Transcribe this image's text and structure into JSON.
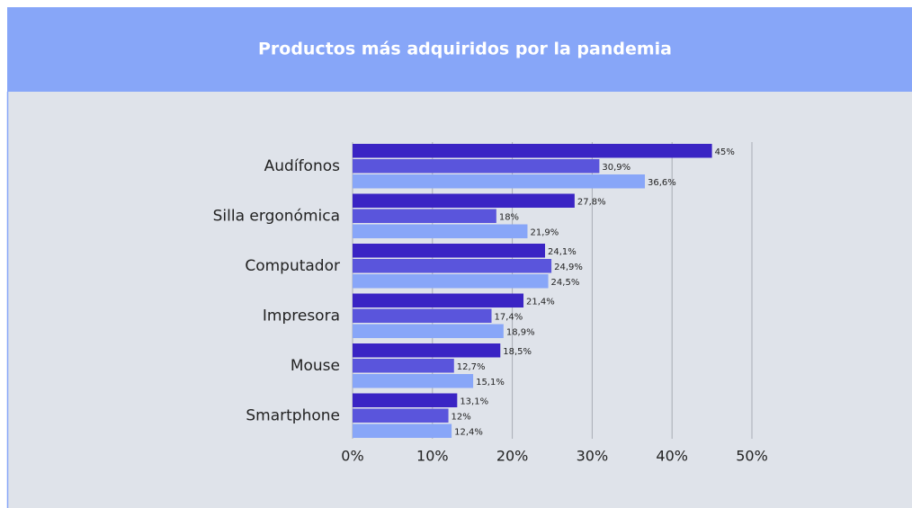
{
  "chart_data": {
    "type": "bar",
    "orientation": "horizontal",
    "title": "Productos más adquiridos por la pandemia",
    "categories": [
      "Audífonos",
      "Silla ergonómica",
      "Computador",
      "Impresora",
      "Mouse",
      "Smartphone"
    ],
    "series": [
      {
        "color": "#3a24c4",
        "values": [
          45,
          27.8,
          24.1,
          21.4,
          18.5,
          13.1
        ],
        "value_labels": [
          "45%",
          "27,8%",
          "24,1%",
          "21,4%",
          "18,5%",
          "13,1%"
        ]
      },
      {
        "color": "#5a55dc",
        "values": [
          30.9,
          18,
          24.9,
          17.4,
          12.7,
          12
        ],
        "value_labels": [
          "30,9%",
          "18%",
          "24,9%",
          "17,4%",
          "12,7%",
          "12%"
        ]
      },
      {
        "color": "#88a6f8",
        "values": [
          36.6,
          21.9,
          24.5,
          18.9,
          15.1,
          12.4
        ],
        "value_labels": [
          "36,6%",
          "21,9%",
          "24,5%",
          "18,9%",
          "15,1%",
          "12,4%"
        ]
      }
    ],
    "xlim": [
      0,
      50
    ],
    "xticks": [
      {
        "value": 0,
        "label": "0%"
      },
      {
        "value": 10,
        "label": "10%"
      },
      {
        "value": 20,
        "label": "20%"
      },
      {
        "value": 30,
        "label": "30%"
      },
      {
        "value": 40,
        "label": "40%"
      },
      {
        "value": 50,
        "label": "50%"
      }
    ],
    "grid": true
  }
}
